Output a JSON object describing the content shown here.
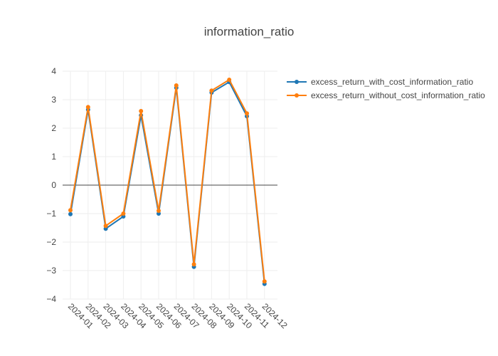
{
  "chart_data": {
    "type": "line",
    "title": "information_ratio",
    "xlabel": "",
    "ylabel": "",
    "categories": [
      "2024-01",
      "2024-02",
      "2024-03",
      "2024-04",
      "2024-05",
      "2024-06",
      "2024-07",
      "2024-08",
      "2024-09",
      "2024-10",
      "2024-11",
      "2024-12"
    ],
    "ylim": [
      -4,
      4
    ],
    "yticks": [
      4,
      3,
      2,
      1,
      0,
      -1,
      -2,
      -3,
      -4
    ],
    "ytick_labels": [
      "4",
      "3",
      "2",
      "1",
      "0",
      "−1",
      "−2",
      "−3",
      "−4"
    ],
    "grid": true,
    "legend_position": "top-right",
    "series": [
      {
        "name": "excess_return_with_cost_information_ratio",
        "color": "#1f77b4",
        "values": [
          -1.02,
          2.65,
          -1.53,
          -1.1,
          2.45,
          -1.0,
          3.42,
          -2.87,
          3.25,
          3.62,
          2.42,
          -3.47
        ]
      },
      {
        "name": "excess_return_without_cost_information_ratio",
        "color": "#ff7f0e",
        "values": [
          -0.88,
          2.74,
          -1.43,
          -1.0,
          2.6,
          -0.9,
          3.5,
          -2.78,
          3.32,
          3.7,
          2.52,
          -3.38
        ]
      }
    ]
  }
}
